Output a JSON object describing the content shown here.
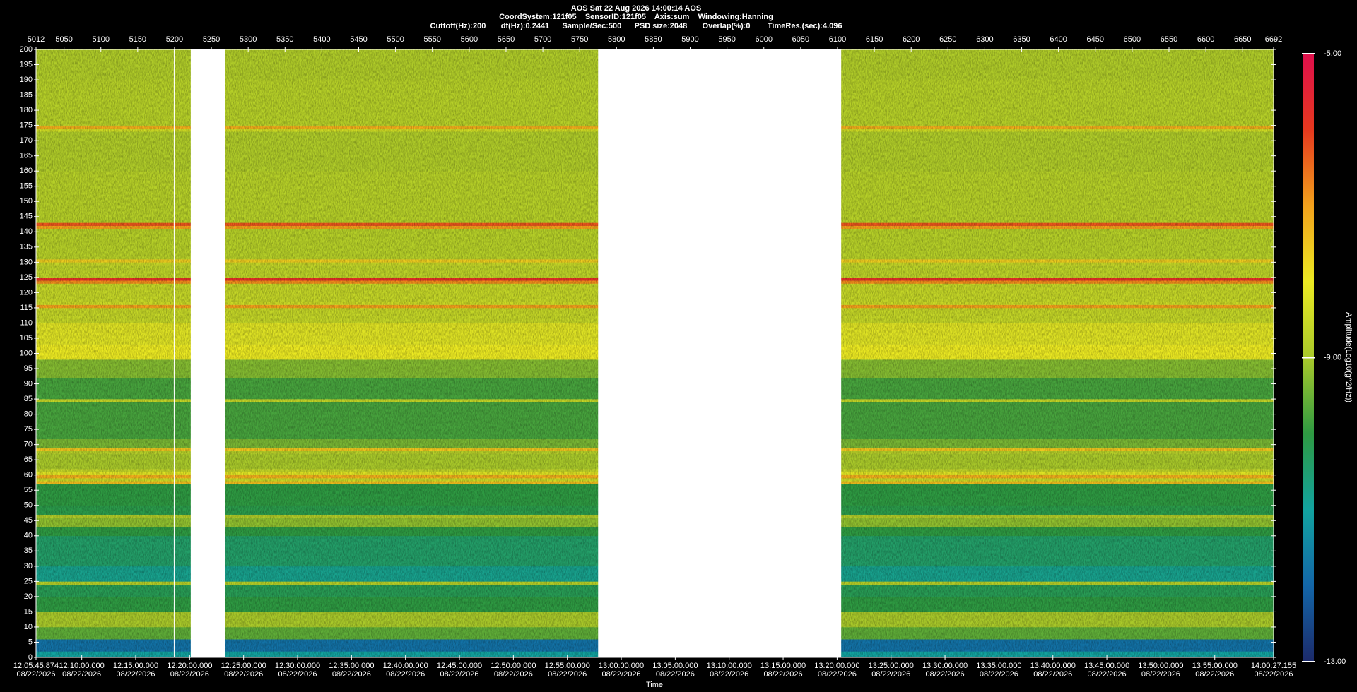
{
  "chart_data": {
    "type": "spectrogram",
    "title_lines": [
      "AOS  Sat 22 Aug 2026 14:00:14  AOS",
      "CoordSystem:121f05    SensorID:121f05    Axis:sum    Windowing:Hanning",
      "Cuttoff(Hz):200       df(Hz):0.2441      Sample/Sec:500      PSD size:2048       Overlap(%):0        TimeRes.(sec):4.096"
    ],
    "xlabel": "Time",
    "colorbar_label": "Amplitude(Log10(g^2/Hz))",
    "xlim": [
      5012,
      6692
    ],
    "xticks": [
      5012,
      5050,
      5100,
      5150,
      5200,
      5250,
      5300,
      5350,
      5400,
      5450,
      5500,
      5550,
      5600,
      5650,
      5700,
      5750,
      5800,
      5850,
      5900,
      5950,
      6000,
      6050,
      6100,
      6150,
      6200,
      6250,
      6300,
      6350,
      6400,
      6450,
      6500,
      6550,
      6600,
      6650,
      6692
    ],
    "x2lim": [
      43545.874,
      50427.155
    ],
    "x2ticks": [
      {
        "value": 43545.874,
        "label": "12:05:45.874",
        "date": "08/22/2026"
      },
      {
        "value": 43800,
        "label": "12:10:00.000",
        "date": "08/22/2026"
      },
      {
        "value": 44100,
        "label": "12:15:00.000",
        "date": "08/22/2026"
      },
      {
        "value": 44400,
        "label": "12:20:00.000",
        "date": "08/22/2026"
      },
      {
        "value": 44700,
        "label": "12:25:00.000",
        "date": "08/22/2026"
      },
      {
        "value": 45000,
        "label": "12:30:00.000",
        "date": "08/22/2026"
      },
      {
        "value": 45300,
        "label": "12:35:00.000",
        "date": "08/22/2026"
      },
      {
        "value": 45600,
        "label": "12:40:00.000",
        "date": "08/22/2026"
      },
      {
        "value": 45900,
        "label": "12:45:00.000",
        "date": "08/22/2026"
      },
      {
        "value": 46200,
        "label": "12:50:00.000",
        "date": "08/22/2026"
      },
      {
        "value": 46500,
        "label": "12:55:00.000",
        "date": "08/22/2026"
      },
      {
        "value": 46800,
        "label": "13:00:00.000",
        "date": "08/22/2026"
      },
      {
        "value": 47100,
        "label": "13:05:00.000",
        "date": "08/22/2026"
      },
      {
        "value": 47400,
        "label": "13:10:00.000",
        "date": "08/22/2026"
      },
      {
        "value": 47700,
        "label": "13:15:00.000",
        "date": "08/22/2026"
      },
      {
        "value": 48000,
        "label": "13:20:00.000",
        "date": "08/22/2026"
      },
      {
        "value": 48300,
        "label": "13:25:00.000",
        "date": "08/22/2026"
      },
      {
        "value": 48600,
        "label": "13:30:00.000",
        "date": "08/22/2026"
      },
      {
        "value": 48900,
        "label": "13:35:00.000",
        "date": "08/22/2026"
      },
      {
        "value": 49200,
        "label": "13:40:00.000",
        "date": "08/22/2026"
      },
      {
        "value": 49500,
        "label": "13:45:00.000",
        "date": "08/22/2026"
      },
      {
        "value": 49800,
        "label": "13:50:00.000",
        "date": "08/22/2026"
      },
      {
        "value": 50100,
        "label": "13:55:00.000",
        "date": "08/22/2026"
      },
      {
        "value": 50427.155,
        "label": "14:00:27.155",
        "date": "08/22/2026"
      }
    ],
    "ylim": [
      0,
      200
    ],
    "yticks": [
      0,
      5,
      10,
      15,
      20,
      25,
      30,
      35,
      40,
      45,
      50,
      55,
      60,
      65,
      70,
      75,
      80,
      85,
      90,
      95,
      100,
      105,
      110,
      115,
      120,
      125,
      130,
      135,
      140,
      145,
      150,
      155,
      160,
      165,
      170,
      175,
      180,
      185,
      190,
      195,
      200
    ],
    "clim": [
      -13,
      -5
    ],
    "cticks": [
      {
        "value": -13,
        "label": "-13.00"
      },
      {
        "value": -9,
        "label": "-9.00"
      },
      {
        "value": -5,
        "label": "-5.00"
      }
    ],
    "colormap": [
      "#1c2a6a",
      "#1366a8",
      "#12a3a0",
      "#2e9a42",
      "#a9c92a",
      "#ecea22",
      "#f2a11c",
      "#e6381e",
      "#df0f4c"
    ],
    "gaps": [
      [
        5199,
        5200
      ],
      [
        5222,
        5269
      ],
      [
        5775,
        6105
      ]
    ],
    "frequency_edges": [
      0,
      2,
      6,
      10,
      15,
      20,
      24,
      25,
      30,
      40,
      43,
      46,
      47,
      50,
      57,
      58,
      59,
      60,
      61,
      62,
      67,
      68,
      69,
      72,
      84,
      85,
      92,
      98,
      103,
      110,
      115,
      116,
      117,
      123,
      124,
      125,
      129,
      130,
      131,
      141,
      142,
      143,
      160,
      173,
      174,
      175,
      190,
      200
    ],
    "amplitudes": [
      -11.0,
      -11.8,
      -9.6,
      -9.0,
      -10.0,
      -10.2,
      -8.8,
      -10.8,
      -10.4,
      -10.0,
      -9.2,
      -8.9,
      -10.1,
      -10.0,
      -7.4,
      -8.5,
      -7.2,
      -8.2,
      -8.6,
      -9.0,
      -8.8,
      -7.5,
      -9.4,
      -9.8,
      -8.6,
      -9.8,
      -9.3,
      -8.0,
      -8.2,
      -8.6,
      -7.0,
      -8.5,
      -8.6,
      -6.8,
      -5.8,
      -8.7,
      -8.6,
      -7.6,
      -8.8,
      -7.0,
      -6.3,
      -8.8,
      -8.9,
      -8.4,
      -7.2,
      -8.8,
      -8.9
    ]
  }
}
